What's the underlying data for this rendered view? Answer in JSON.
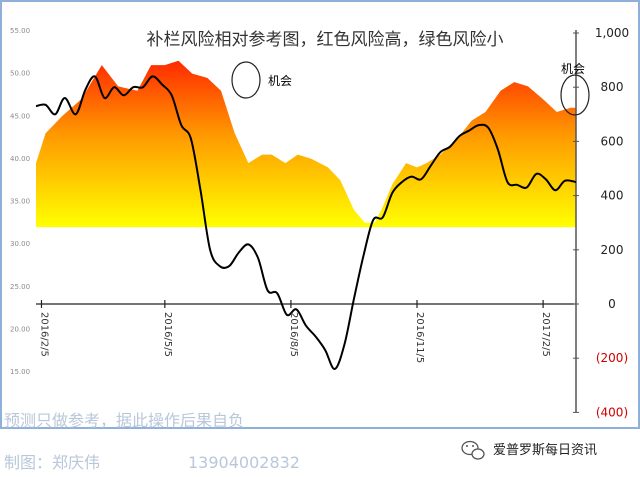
{
  "chart_data": {
    "type": "area+line",
    "title": "补栏风险相对参考图，红色风险高，绿色风险小",
    "x_ticks": [
      "2016/2/5",
      "2016/5/5",
      "2016/8/5",
      "2016/11/5",
      "2017/2/5"
    ],
    "left_axis": {
      "ticks": [
        "55.00",
        "50.00",
        "45.00",
        "40.00",
        "35.00",
        "30.00",
        "25.00",
        "20.00",
        "15.00"
      ],
      "range": [
        15,
        55
      ]
    },
    "right_axis": {
      "ticks": [
        "1,000",
        "800",
        "600",
        "400",
        "200",
        "0",
        "(200)",
        "(400)"
      ],
      "range": [
        -400,
        1000
      ]
    },
    "area_series": {
      "axis": "left",
      "baseline": 32,
      "x": [
        "2016-02-01",
        "2016-02-08",
        "2016-02-20",
        "2016-03-05",
        "2016-03-20",
        "2016-04-01",
        "2016-04-15",
        "2016-04-25",
        "2016-05-05",
        "2016-05-15",
        "2016-05-25",
        "2016-06-05",
        "2016-06-15",
        "2016-06-25",
        "2016-07-05",
        "2016-07-15",
        "2016-07-22",
        "2016-08-01",
        "2016-08-10",
        "2016-08-20",
        "2016-09-01",
        "2016-09-10",
        "2016-09-20",
        "2016-09-28",
        "2016-10-05",
        "2016-10-10",
        "2016-10-18",
        "2016-10-28",
        "2016-11-05",
        "2016-11-12",
        "2016-11-22",
        "2016-12-05",
        "2016-12-15",
        "2016-12-25",
        "2017-01-05",
        "2017-01-15",
        "2017-01-25",
        "2017-02-05",
        "2017-02-15",
        "2017-02-25",
        "2017-03-01"
      ],
      "values": [
        39.5,
        43,
        45,
        47,
        51,
        48.5,
        48,
        51,
        51,
        51.5,
        50,
        49.5,
        48,
        43,
        39.5,
        40.5,
        40.5,
        39.5,
        40.5,
        40,
        39,
        37.5,
        34,
        32.5,
        32.5,
        34,
        37,
        39.5,
        39,
        39.5,
        40.5,
        42.5,
        44.5,
        45.5,
        48,
        49,
        48.5,
        47,
        45.5,
        46,
        46
      ]
    },
    "line_series": {
      "axis": "right",
      "x": [
        "2016-02-01",
        "2016-02-08",
        "2016-02-15",
        "2016-02-22",
        "2016-03-01",
        "2016-03-08",
        "2016-03-15",
        "2016-03-22",
        "2016-03-29",
        "2016-04-05",
        "2016-04-12",
        "2016-04-19",
        "2016-04-26",
        "2016-05-03",
        "2016-05-10",
        "2016-05-17",
        "2016-05-24",
        "2016-05-31",
        "2016-06-07",
        "2016-06-14",
        "2016-06-21",
        "2016-06-28",
        "2016-07-05",
        "2016-07-12",
        "2016-07-19",
        "2016-07-26",
        "2016-08-02",
        "2016-08-09",
        "2016-08-16",
        "2016-08-23",
        "2016-08-30",
        "2016-09-06",
        "2016-09-13",
        "2016-09-20",
        "2016-09-27",
        "2016-10-04",
        "2016-10-11",
        "2016-10-18",
        "2016-10-25",
        "2016-11-01",
        "2016-11-08",
        "2016-11-15",
        "2016-11-22",
        "2016-11-29",
        "2016-12-06",
        "2016-12-13",
        "2016-12-20",
        "2016-12-27",
        "2017-01-03",
        "2017-01-10",
        "2017-01-17",
        "2017-01-24",
        "2017-01-31",
        "2017-02-07",
        "2017-02-14",
        "2017-02-21",
        "2017-03-01"
      ],
      "values": [
        730,
        735,
        700,
        760,
        700,
        790,
        840,
        760,
        800,
        770,
        800,
        800,
        840,
        810,
        770,
        660,
        610,
        420,
        200,
        140,
        140,
        190,
        220,
        170,
        50,
        40,
        -40,
        -20,
        -80,
        -120,
        -170,
        -240,
        -150,
        20,
        180,
        310,
        320,
        410,
        450,
        470,
        460,
        510,
        560,
        580,
        620,
        640,
        660,
        650,
        570,
        450,
        440,
        430,
        480,
        460,
        420,
        455,
        450
      ]
    },
    "annotations": [
      "机会",
      "机会"
    ],
    "colors": {
      "area_top": "#ff2a00",
      "area_mid": "#ff9a00",
      "area_bottom": "#ffff00",
      "line": "#000000",
      "negative": "#d00000"
    }
  },
  "footer": {
    "disclaimer": "预测只做参考，据此操作后果自负",
    "author": "制图：郑庆伟",
    "phone": "13904002832",
    "brand": "爱普罗斯每日资讯"
  }
}
